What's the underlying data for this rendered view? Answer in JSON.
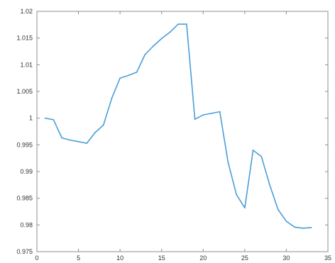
{
  "chart_data": {
    "type": "line",
    "title": "",
    "xlabel": "",
    "ylabel": "",
    "xlim": [
      0,
      35
    ],
    "ylim": [
      0.975,
      1.02
    ],
    "x_ticks": [
      0,
      5,
      10,
      15,
      20,
      25,
      30,
      35
    ],
    "x_tick_labels": [
      "0",
      "5",
      "10",
      "15",
      "20",
      "25",
      "30",
      "35"
    ],
    "y_ticks": [
      0.975,
      0.98,
      0.985,
      0.99,
      0.995,
      1,
      1.005,
      1.01,
      1.015,
      1.02
    ],
    "y_tick_labels": [
      "0.975",
      "0.98",
      "0.985",
      "0.99",
      "0.995",
      "1",
      "1.005",
      "1.01",
      "1.015",
      "1.02"
    ],
    "grid": false,
    "series": [
      {
        "color": "#4a9ed8",
        "x": [
          1,
          2,
          3,
          4,
          5,
          6,
          7,
          8,
          9,
          10,
          11,
          12,
          13,
          14,
          15,
          16,
          17,
          18,
          19,
          20,
          21,
          22,
          23,
          24,
          25,
          26,
          27,
          28,
          29,
          30,
          31,
          32,
          33
        ],
        "values": [
          1.0,
          0.9997,
          0.9963,
          0.9959,
          0.9956,
          0.9953,
          0.9973,
          0.9987,
          1.0037,
          1.0075,
          1.008,
          1.0086,
          1.0119,
          1.0135,
          1.0149,
          1.0161,
          1.0176,
          1.0176,
          0.9998,
          1.0006,
          1.0009,
          1.0012,
          0.9917,
          0.9857,
          0.9832,
          0.994,
          0.9928,
          0.9875,
          0.9829,
          0.9807,
          0.9796,
          0.9794,
          0.9795
        ]
      }
    ]
  }
}
